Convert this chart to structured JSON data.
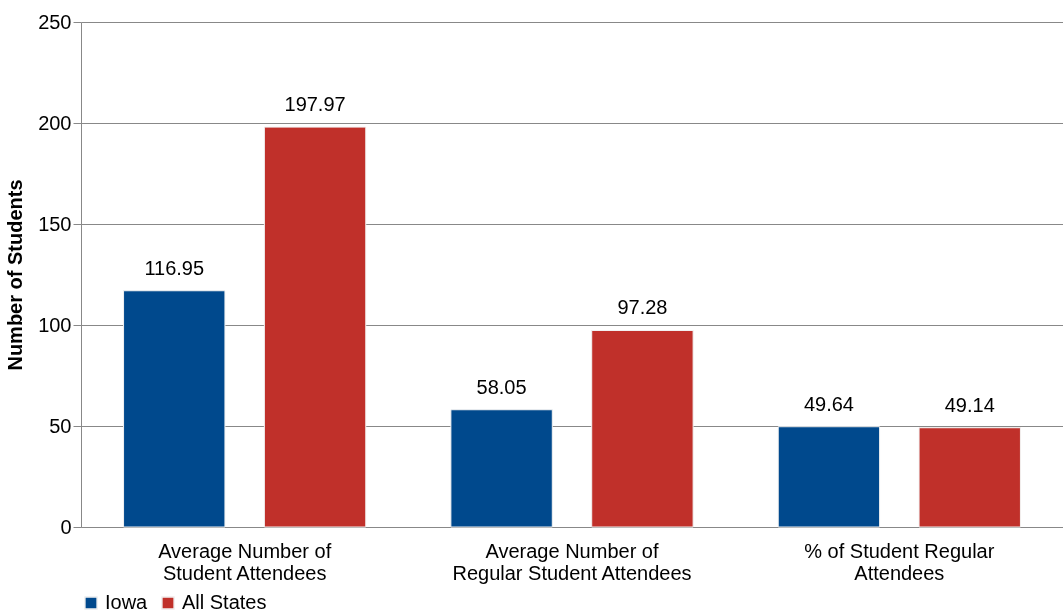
{
  "chart_data": {
    "type": "bar",
    "ylabel": "Number of Students",
    "categories": [
      "Average Number of Student Attendees",
      "Average Number of Regular Student Attendees",
      "% of Student  Regular Attendees"
    ],
    "series": [
      {
        "name": "Iowa",
        "color": "#00498d",
        "values": [
          116.95,
          58.05,
          49.64
        ]
      },
      {
        "name": "All States",
        "color": "#c0302a",
        "values": [
          197.97,
          97.28,
          49.14
        ]
      }
    ],
    "ylim": [
      0,
      250
    ],
    "yticks": [
      0,
      50,
      100,
      150,
      200,
      250
    ],
    "grid": "y",
    "legend": "bottom",
    "data_labels": true
  }
}
